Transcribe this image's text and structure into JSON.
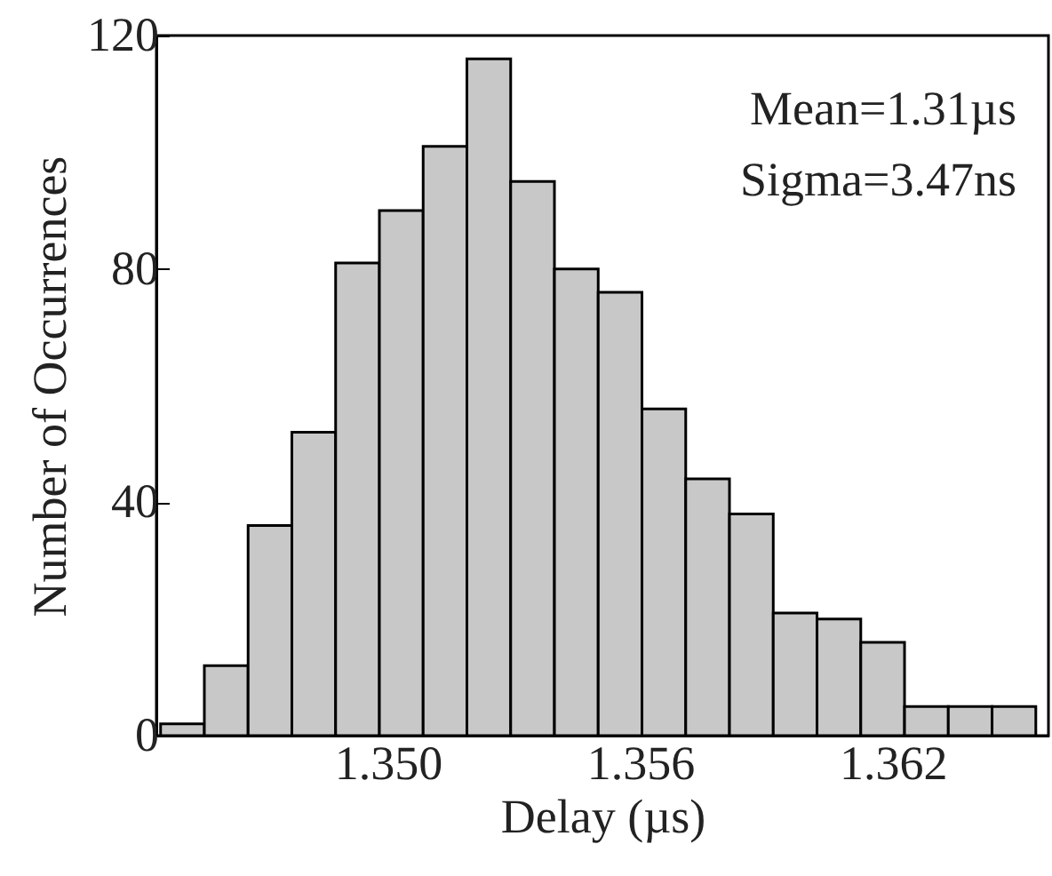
{
  "chart_data": {
    "type": "histogram",
    "xlabel": "Delay (µs)",
    "ylabel": "Number of Occurrences",
    "bins": [
      1.3446,
      1.34564,
      1.34668,
      1.34772,
      1.34876,
      1.3498,
      1.35084,
      1.35188,
      1.35292,
      1.35396,
      1.355,
      1.35604,
      1.35708,
      1.35812,
      1.35916,
      1.3602,
      1.36124,
      1.36228,
      1.36332,
      1.36436,
      1.3654
    ],
    "values": [
      2,
      12,
      36,
      52,
      81,
      90,
      101,
      116,
      95,
      80,
      76,
      56,
      44,
      38,
      21,
      20,
      16,
      5,
      5,
      5
    ],
    "color": "#c8c8c8",
    "xlim": [
      1.3445,
      1.3657
    ],
    "xticks": [
      {
        "value": 1.35,
        "label": "1.350"
      },
      {
        "value": 1.356,
        "label": "1.356"
      },
      {
        "value": 1.362,
        "label": "1.362"
      }
    ],
    "ylim": [
      0,
      120
    ],
    "yticks": [
      0,
      40,
      80,
      120
    ],
    "annotations": [
      "Mean=1.31µs",
      "Sigma=3.47ns"
    ]
  }
}
